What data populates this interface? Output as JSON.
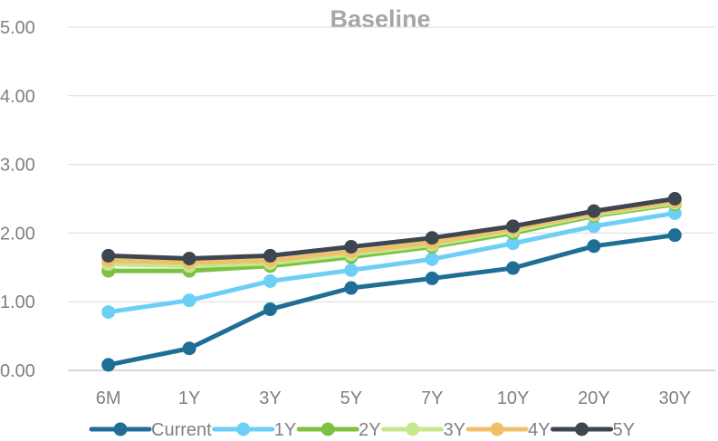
{
  "chart_data": {
    "type": "line",
    "title": "Baseline",
    "xlabel": "",
    "ylabel": "",
    "categories": [
      "6M",
      "1Y",
      "3Y",
      "5Y",
      "7Y",
      "10Y",
      "20Y",
      "30Y"
    ],
    "ylim": [
      0,
      5
    ],
    "yticks": [
      "0.00",
      "1.00",
      "2.00",
      "3.00",
      "4.00",
      "5.00"
    ],
    "ytick_values": [
      0,
      1,
      2,
      3,
      4,
      5
    ],
    "grid": true,
    "legend_position": "bottom",
    "series": [
      {
        "name": "Current",
        "color": "#1f6e96",
        "values": [
          0.08,
          0.32,
          0.89,
          1.2,
          1.34,
          1.49,
          1.81,
          1.97
        ]
      },
      {
        "name": "1Y",
        "color": "#6dcff6",
        "values": [
          0.85,
          1.02,
          1.3,
          1.46,
          1.62,
          1.85,
          2.1,
          2.29
        ]
      },
      {
        "name": "2Y",
        "color": "#7cc242",
        "values": [
          1.45,
          1.45,
          1.52,
          1.65,
          1.8,
          2.0,
          2.25,
          2.42
        ]
      },
      {
        "name": "3Y",
        "color": "#c5e88e",
        "values": [
          1.55,
          1.52,
          1.56,
          1.69,
          1.83,
          2.03,
          2.27,
          2.44
        ]
      },
      {
        "name": "4Y",
        "color": "#efc06a",
        "values": [
          1.6,
          1.57,
          1.6,
          1.73,
          1.86,
          2.06,
          2.29,
          2.46
        ]
      },
      {
        "name": "5Y",
        "color": "#3e4651",
        "values": [
          1.67,
          1.63,
          1.67,
          1.8,
          1.93,
          2.1,
          2.32,
          2.5
        ]
      }
    ]
  }
}
